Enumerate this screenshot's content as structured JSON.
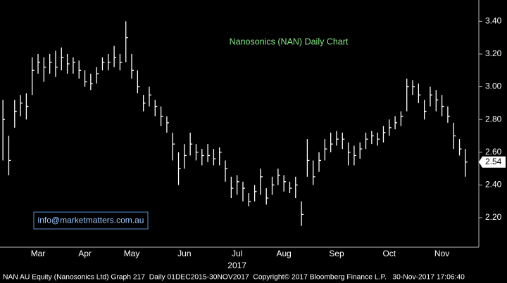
{
  "chart_data": {
    "type": "ohlc",
    "title": "Nanosonics (NAN) Daily Chart",
    "watermark": "info@marketmatters.com.au",
    "footer": "NAN AU Equity (Nanosonics Ltd) Graph 217  Daily 01DEC2015-30NOV2017  Copyright© 2017 Bloomberg Finance L.P.   30-Nov-2017 17:06:40",
    "year_label": "2017",
    "color": "#ffffff",
    "categories": [
      null,
      null,
      null,
      null,
      null,
      null,
      "Mar",
      null,
      null,
      null,
      null,
      null,
      null,
      null,
      "Apr",
      null,
      null,
      null,
      null,
      null,
      null,
      null,
      "May",
      null,
      null,
      null,
      null,
      null,
      null,
      null,
      null,
      "Jun",
      null,
      null,
      null,
      null,
      null,
      null,
      null,
      null,
      "Jul",
      null,
      null,
      null,
      null,
      null,
      null,
      null,
      "Aug",
      null,
      null,
      null,
      null,
      null,
      null,
      null,
      null,
      "Sep",
      null,
      null,
      null,
      null,
      null,
      null,
      null,
      null,
      "Oct",
      null,
      null,
      null,
      null,
      null,
      null,
      null,
      null,
      "Nov",
      null,
      null,
      null,
      null
    ],
    "high": [
      2.92,
      2.7,
      2.92,
      2.95,
      2.96,
      3.18,
      3.2,
      3.18,
      3.2,
      3.22,
      3.24,
      3.2,
      3.18,
      3.16,
      3.1,
      3.08,
      3.12,
      3.18,
      3.2,
      3.25,
      3.2,
      3.4,
      3.2,
      3.1,
      2.95,
      3.0,
      2.92,
      2.88,
      2.82,
      2.72,
      2.6,
      2.65,
      2.72,
      2.65,
      2.62,
      2.65,
      2.62,
      2.63,
      2.55,
      2.45,
      2.46,
      2.42,
      2.35,
      2.4,
      2.5,
      2.38,
      2.45,
      2.5,
      2.46,
      2.42,
      2.45,
      2.3,
      2.68,
      2.55,
      2.6,
      2.68,
      2.72,
      2.73,
      2.72,
      2.66,
      2.64,
      2.66,
      2.72,
      2.73,
      2.72,
      2.76,
      2.8,
      2.82,
      2.85,
      3.05,
      3.04,
      3.02,
      2.92,
      3.0,
      2.98,
      2.95,
      2.88,
      2.78,
      2.68,
      2.62
    ],
    "low": [
      2.55,
      2.46,
      2.75,
      2.82,
      2.8,
      2.95,
      3.08,
      3.03,
      3.08,
      3.06,
      3.1,
      3.08,
      3.08,
      3.05,
      3.0,
      2.98,
      3.02,
      3.1,
      3.1,
      3.12,
      3.1,
      3.15,
      3.05,
      2.96,
      2.85,
      2.88,
      2.82,
      2.76,
      2.72,
      2.55,
      2.4,
      2.5,
      2.58,
      2.55,
      2.52,
      2.54,
      2.52,
      2.52,
      2.42,
      2.32,
      2.34,
      2.3,
      2.27,
      2.3,
      2.34,
      2.28,
      2.34,
      2.4,
      2.36,
      2.35,
      2.32,
      2.15,
      2.45,
      2.4,
      2.48,
      2.55,
      2.6,
      2.64,
      2.62,
      2.52,
      2.52,
      2.56,
      2.62,
      2.65,
      2.64,
      2.66,
      2.7,
      2.74,
      2.76,
      2.85,
      2.95,
      2.9,
      2.8,
      2.88,
      2.85,
      2.82,
      2.78,
      2.62,
      2.58,
      2.45
    ],
    "close": [
      2.8,
      2.55,
      2.85,
      2.9,
      2.88,
      3.1,
      3.15,
      3.12,
      3.15,
      3.12,
      3.18,
      3.14,
      3.15,
      3.1,
      3.03,
      3.02,
      3.08,
      3.15,
      3.15,
      3.18,
      3.15,
      3.3,
      3.1,
      3.0,
      2.9,
      2.95,
      2.88,
      2.82,
      2.78,
      2.65,
      2.5,
      2.58,
      2.65,
      2.6,
      2.58,
      2.58,
      2.56,
      2.6,
      2.5,
      2.38,
      2.42,
      2.38,
      2.3,
      2.36,
      2.45,
      2.32,
      2.4,
      2.46,
      2.42,
      2.38,
      2.4,
      2.22,
      2.55,
      2.45,
      2.55,
      2.62,
      2.65,
      2.68,
      2.68,
      2.6,
      2.58,
      2.62,
      2.68,
      2.7,
      2.68,
      2.72,
      2.75,
      2.78,
      2.82,
      3.0,
      3.0,
      2.95,
      2.85,
      2.95,
      2.92,
      2.88,
      2.82,
      2.7,
      2.62,
      2.54
    ],
    "ylim": [
      2.02,
      3.53
    ],
    "yticks": [
      {
        "value": 2.2,
        "label": "2.20"
      },
      {
        "value": 2.4,
        "label": "2.40"
      },
      {
        "value": 2.6,
        "label": "2.60"
      },
      {
        "value": 2.8,
        "label": "2.80"
      },
      {
        "value": 3.0,
        "label": "3.00"
      },
      {
        "value": 3.2,
        "label": "3.20"
      },
      {
        "value": 3.4,
        "label": "3.40"
      }
    ]
  }
}
